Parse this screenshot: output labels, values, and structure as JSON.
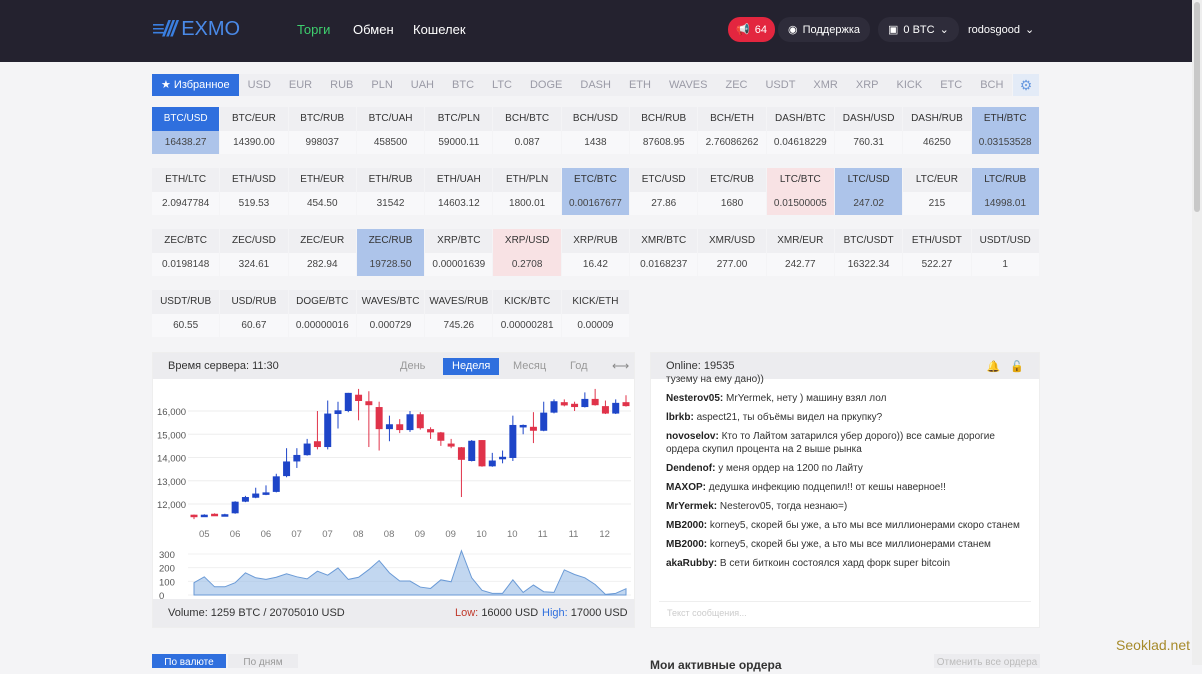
{
  "header": {
    "logo": "EXMO",
    "nav": [
      "Торги",
      "Обмен",
      "Кошелек"
    ],
    "notifications": "64",
    "support": "Поддержка",
    "wallet": "0 BTC",
    "user": "rodosgood"
  },
  "currency_tabs": [
    "Избранное",
    "USD",
    "EUR",
    "RUB",
    "PLN",
    "UAH",
    "BTC",
    "LTC",
    "DOGE",
    "DASH",
    "ETH",
    "WAVES",
    "ZEC",
    "USDT",
    "XMR",
    "XRP",
    "KICK",
    "ETC",
    "BCH"
  ],
  "tickers": [
    [
      [
        "BTC/USD",
        "16438.27",
        "sel"
      ],
      [
        "BTC/EUR",
        "14390.00",
        ""
      ],
      [
        "BTC/RUB",
        "998037",
        ""
      ],
      [
        "BTC/UAH",
        "458500",
        ""
      ],
      [
        "BTC/PLN",
        "59000.11",
        ""
      ],
      [
        "BCH/BTC",
        "0.087",
        ""
      ],
      [
        "BCH/USD",
        "1438",
        ""
      ],
      [
        "BCH/RUB",
        "87608.95",
        ""
      ],
      [
        "BCH/ETH",
        "2.76086262",
        ""
      ],
      [
        "DASH/BTC",
        "0.04618229",
        ""
      ],
      [
        "DASH/USD",
        "760.31",
        ""
      ],
      [
        "DASH/RUB",
        "46250",
        ""
      ],
      [
        "ETH/BTC",
        "0.03153528",
        "blue"
      ]
    ],
    [
      [
        "ETH/LTC",
        "2.0947784",
        ""
      ],
      [
        "ETH/USD",
        "519.53",
        ""
      ],
      [
        "ETH/EUR",
        "454.50",
        ""
      ],
      [
        "ETH/RUB",
        "31542",
        ""
      ],
      [
        "ETH/UAH",
        "14603.12",
        ""
      ],
      [
        "ETH/PLN",
        "1800.01",
        ""
      ],
      [
        "ETC/BTC",
        "0.00167677",
        "blue"
      ],
      [
        "ETC/USD",
        "27.86",
        ""
      ],
      [
        "ETC/RUB",
        "1680",
        ""
      ],
      [
        "LTC/BTC",
        "0.01500005",
        "pink"
      ],
      [
        "LTC/USD",
        "247.02",
        "blue"
      ],
      [
        "LTC/EUR",
        "215",
        ""
      ],
      [
        "LTC/RUB",
        "14998.01",
        "blue"
      ]
    ],
    [
      [
        "ZEC/BTC",
        "0.0198148",
        ""
      ],
      [
        "ZEC/USD",
        "324.61",
        ""
      ],
      [
        "ZEC/EUR",
        "282.94",
        ""
      ],
      [
        "ZEC/RUB",
        "19728.50",
        "blue"
      ],
      [
        "XRP/BTC",
        "0.00001639",
        ""
      ],
      [
        "XRP/USD",
        "0.2708",
        "pink"
      ],
      [
        "XRP/RUB",
        "16.42",
        ""
      ],
      [
        "XMR/BTC",
        "0.0168237",
        ""
      ],
      [
        "XMR/USD",
        "277.00",
        ""
      ],
      [
        "XMR/EUR",
        "242.77",
        ""
      ],
      [
        "BTC/USDT",
        "16322.34",
        ""
      ],
      [
        "ETH/USDT",
        "522.27",
        ""
      ],
      [
        "USDT/USD",
        "1",
        ""
      ]
    ],
    [
      [
        "USDT/RUB",
        "60.55",
        ""
      ],
      [
        "USD/RUB",
        "60.67",
        ""
      ],
      [
        "DOGE/BTC",
        "0.00000016",
        ""
      ],
      [
        "WAVES/BTC",
        "0.000729",
        ""
      ],
      [
        "WAVES/RUB",
        "745.26",
        ""
      ],
      [
        "KICK/BTC",
        "0.00000281",
        ""
      ],
      [
        "KICK/ETH",
        "0.00009",
        ""
      ]
    ]
  ],
  "chart_panel": {
    "server_time": "Время сервера: 11:30",
    "periods": [
      "День",
      "Неделя",
      "Месяц",
      "Год"
    ],
    "active_period": "Неделя",
    "volume": "Volume: 1259 BTC / 20705010 USD",
    "low_label": "Low:",
    "low_value": "16000 USD",
    "high_label": "High:",
    "high_value": "17000 USD"
  },
  "chart_data": {
    "type": "candlestick",
    "x_tick_labels": [
      "05",
      "06",
      "06",
      "07",
      "07",
      "08",
      "08",
      "09",
      "09",
      "10",
      "10",
      "11",
      "11",
      "12"
    ],
    "y_ticks": [
      12000,
      13000,
      14000,
      15000,
      16000
    ],
    "volume_ticks": [
      0,
      100,
      200,
      300
    ],
    "candles": [
      [
        11540,
        11450,
        11550,
        11350
      ],
      [
        11480,
        11540,
        11560,
        11460
      ],
      [
        11580,
        11520,
        11600,
        11500
      ],
      [
        11500,
        11560,
        11580,
        11490
      ],
      [
        11600,
        12100,
        12120,
        11580
      ],
      [
        12100,
        12300,
        12350,
        12080
      ],
      [
        12270,
        12450,
        12700,
        12250
      ],
      [
        12400,
        12500,
        12800,
        12380
      ],
      [
        12520,
        13190,
        13300,
        12500
      ],
      [
        13200,
        13830,
        14400,
        13150
      ],
      [
        13830,
        14110,
        14400,
        13550
      ],
      [
        14100,
        14600,
        14800,
        14080
      ],
      [
        14700,
        14450,
        16000,
        14350
      ],
      [
        14450,
        15890,
        16450,
        14350
      ],
      [
        15870,
        16030,
        16400,
        15250
      ],
      [
        16000,
        16780,
        16780,
        15950
      ],
      [
        16700,
        16430,
        16950,
        15600
      ],
      [
        16420,
        16250,
        16850,
        14450
      ],
      [
        16170,
        15220,
        16400,
        14300
      ],
      [
        15220,
        15430,
        15800,
        14700
      ],
      [
        15430,
        15180,
        15650,
        15050
      ],
      [
        15180,
        15860,
        16000,
        15100
      ],
      [
        15860,
        15260,
        15950,
        15200
      ],
      [
        15220,
        15080,
        15300,
        14800
      ],
      [
        15080,
        14720,
        15100,
        14500
      ],
      [
        14600,
        14470,
        14800,
        14400
      ],
      [
        14440,
        13900,
        14450,
        12300
      ],
      [
        13850,
        14720,
        14750,
        13830
      ],
      [
        14750,
        13620,
        14750,
        13600
      ],
      [
        13620,
        13870,
        14200,
        13600
      ],
      [
        13950,
        14030,
        14300,
        13750
      ],
      [
        13980,
        15400,
        15800,
        13850
      ],
      [
        15330,
        15400,
        15420,
        15000
      ],
      [
        15320,
        15150,
        15950,
        14620
      ],
      [
        15150,
        15930,
        16400,
        15130
      ],
      [
        15930,
        16420,
        16500,
        15900
      ],
      [
        16380,
        16240,
        16500,
        16200
      ],
      [
        16310,
        16170,
        16400,
        16000
      ],
      [
        16170,
        16520,
        16800,
        16150
      ],
      [
        16520,
        16250,
        16950,
        16230
      ],
      [
        16210,
        15890,
        16450,
        15870
      ],
      [
        15890,
        16350,
        16500,
        15870
      ],
      [
        16380,
        16210,
        16680,
        16190
      ]
    ],
    "volume": [
      90,
      133,
      60,
      60,
      90,
      162,
      126,
      114,
      130,
      155,
      133,
      118,
      174,
      145,
      198,
      114,
      130,
      186,
      252,
      162,
      102,
      102,
      58,
      48,
      111,
      97,
      324,
      126,
      34,
      12,
      12,
      111,
      19,
      73,
      24,
      19,
      184,
      150,
      126,
      77,
      5,
      12,
      46
    ],
    "colors": {
      "up": "#1e45c8",
      "down": "#e0334a",
      "volume": "#8fb6e4"
    }
  },
  "chat": {
    "online": "Online: 19535",
    "messages": [
      [
        "",
        "тузему на ему дано))"
      ],
      [
        "Nesterov05:",
        "MrYermek, нету ) машину взял лол"
      ],
      [
        "lbrkb:",
        "aspect21, ты объёмы видел на пркупку?"
      ],
      [
        "novoselov:",
        "Кто то Лайтом затарился убер дорого)) все самые дорогие ордера скупил процента на 2 выше рынка"
      ],
      [
        "Dendenof:",
        "у меня ордер на 1200 по Лайту"
      ],
      [
        "MAXOP:",
        "дедушка инфекцию подцепил!! от кешы наверное!!"
      ],
      [
        "MrYermek:",
        "Nesterov05, тогда незнаю=)"
      ],
      [
        "MB2000:",
        "korney5, скорей бы уже, а ьто мы все миллионерами скоро станем"
      ],
      [
        "MB2000:",
        "korney5, скорей бы уже, а ьто мы все миллионерами станем"
      ],
      [
        "akaRubby:",
        "В сети биткоин состоялся хард форк super bitcoin"
      ]
    ],
    "placeholder": "Текст сообщения..."
  },
  "bottom": {
    "btn1": "По валюте",
    "btn2": "По дням",
    "title": "Мои активные ордера",
    "cancel": "Отменить все ордера"
  },
  "watermark": "Seoklad.net"
}
